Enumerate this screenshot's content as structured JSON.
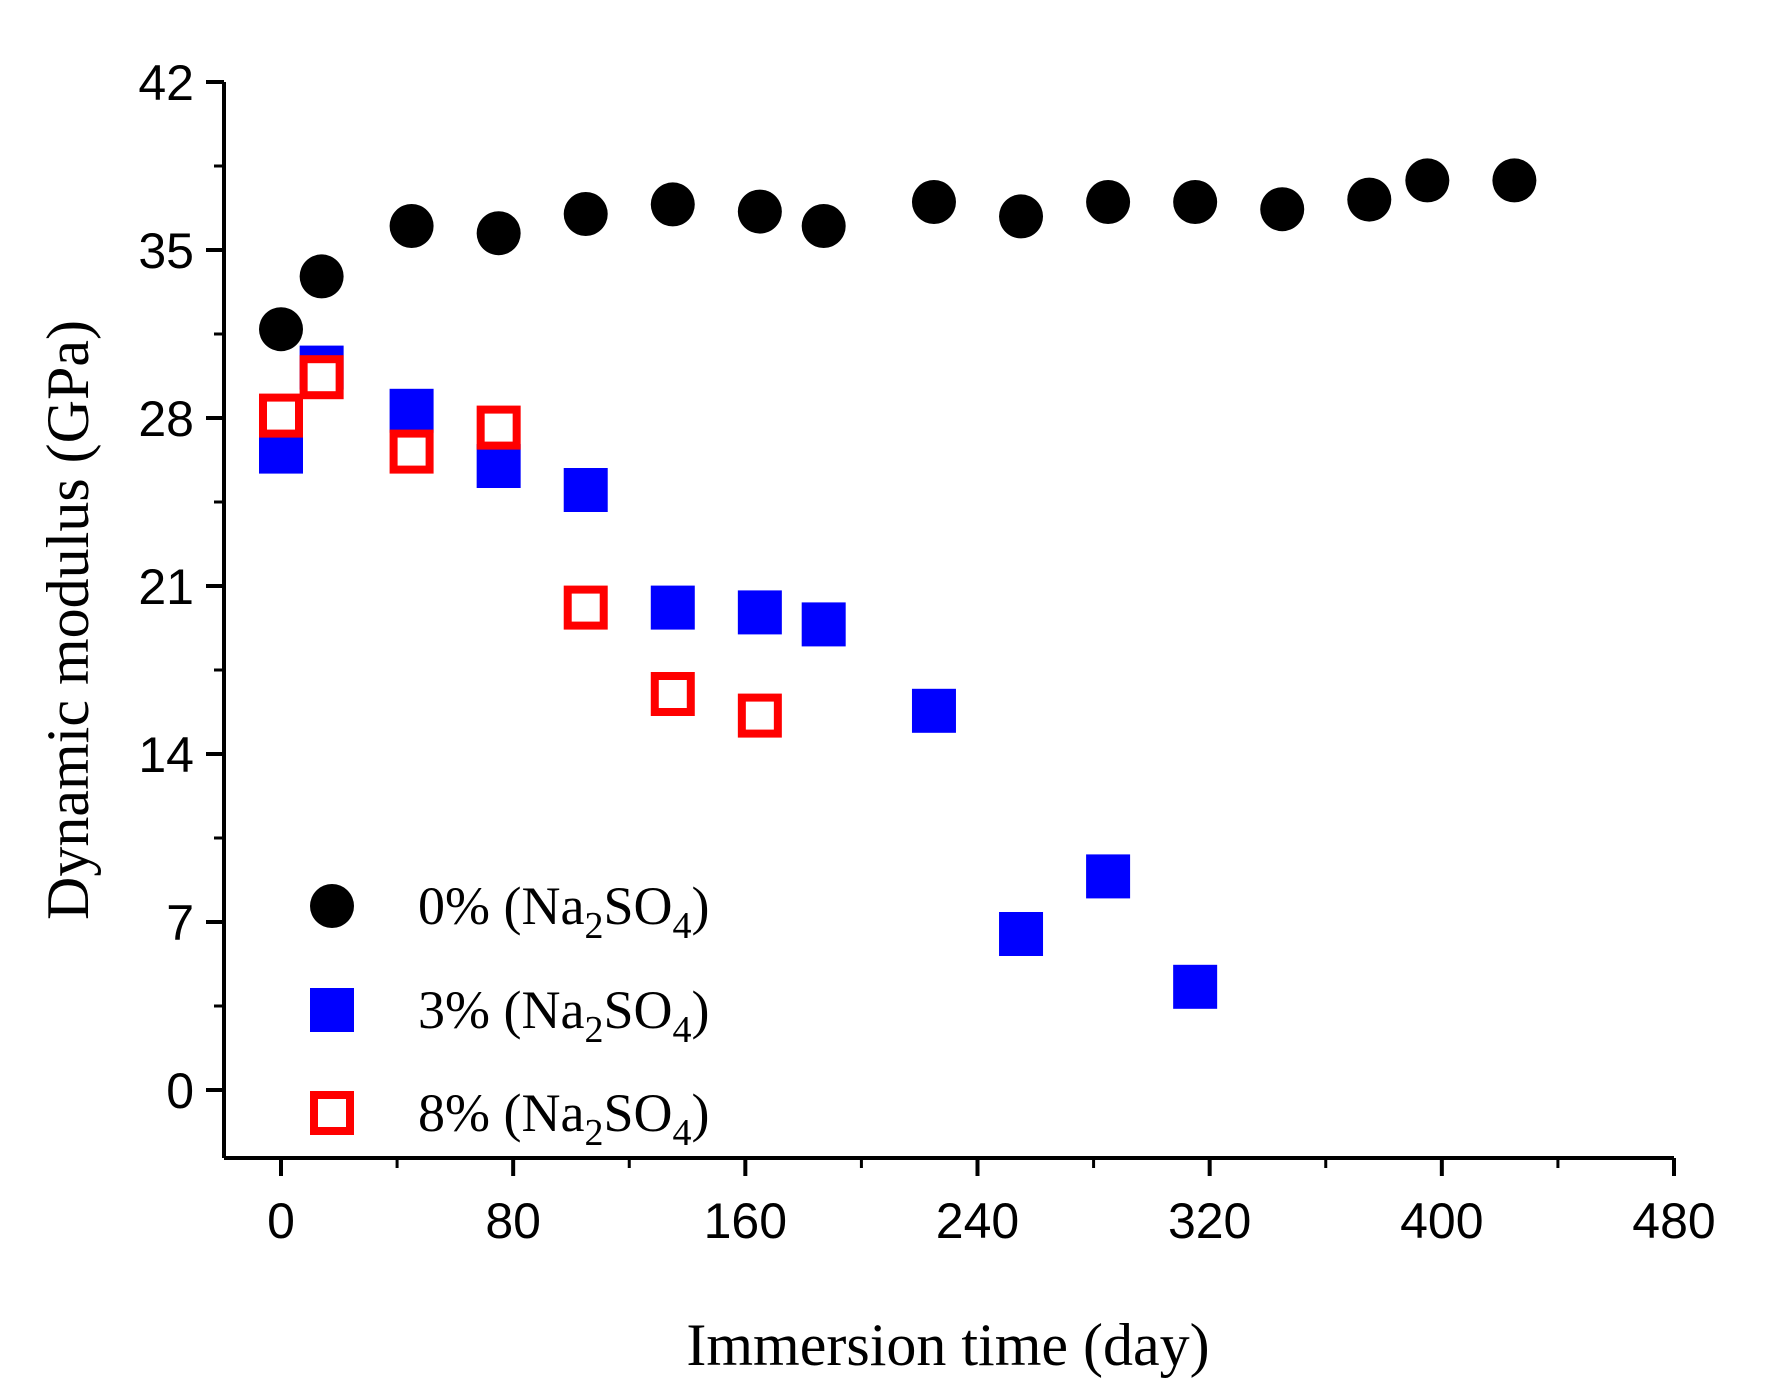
{
  "chart_data": {
    "type": "scatter",
    "title": "",
    "xlabel": "Immersion time (day)",
    "ylabel": "Dynamic modulus (GPa)",
    "xlim": [
      -24,
      480
    ],
    "ylim": [
      -3,
      42
    ],
    "xticks": [
      0,
      80,
      160,
      240,
      320,
      400,
      480
    ],
    "yticks": [
      0,
      7,
      14,
      21,
      28,
      35,
      42
    ],
    "legend_position": "bottom-left",
    "series": [
      {
        "name": "0% (Na2SO4)",
        "label_prefix": "0% (Na",
        "label_sub1": "2",
        "label_mid": "SO",
        "label_sub2": "4",
        "label_suffix": ")",
        "marker": "filled-circle",
        "color": "#000000",
        "x": [
          0,
          14,
          45,
          75,
          105,
          135,
          165,
          187,
          225,
          255,
          285,
          315,
          345,
          375,
          395,
          425
        ],
        "y": [
          31.7,
          33.9,
          36.0,
          35.7,
          36.5,
          36.9,
          36.6,
          36.0,
          37.0,
          36.4,
          37.0,
          37.0,
          36.7,
          37.1,
          37.9,
          37.9
        ]
      },
      {
        "name": "3% (Na2SO4)",
        "label_prefix": "3% (Na",
        "label_sub1": "2",
        "label_mid": "SO",
        "label_sub2": "4",
        "label_suffix": ")",
        "marker": "filled-square",
        "color": "#0000ff",
        "x": [
          0,
          14,
          45,
          75,
          105,
          135,
          165,
          187,
          225,
          255,
          285,
          315
        ],
        "y": [
          26.6,
          30.1,
          28.3,
          26.0,
          25.0,
          20.1,
          19.9,
          19.4,
          15.8,
          6.5,
          8.9,
          4.3
        ]
      },
      {
        "name": "8% (Na2SO4)",
        "label_prefix": "8% (Na",
        "label_sub1": "2",
        "label_mid": "SO",
        "label_sub2": "4",
        "label_suffix": ")",
        "marker": "open-square",
        "color": "#ff0000",
        "x": [
          0,
          14,
          45,
          75,
          105,
          135,
          165
        ],
        "y": [
          28.1,
          29.7,
          26.6,
          27.6,
          20.1,
          16.5,
          15.6
        ]
      }
    ]
  }
}
